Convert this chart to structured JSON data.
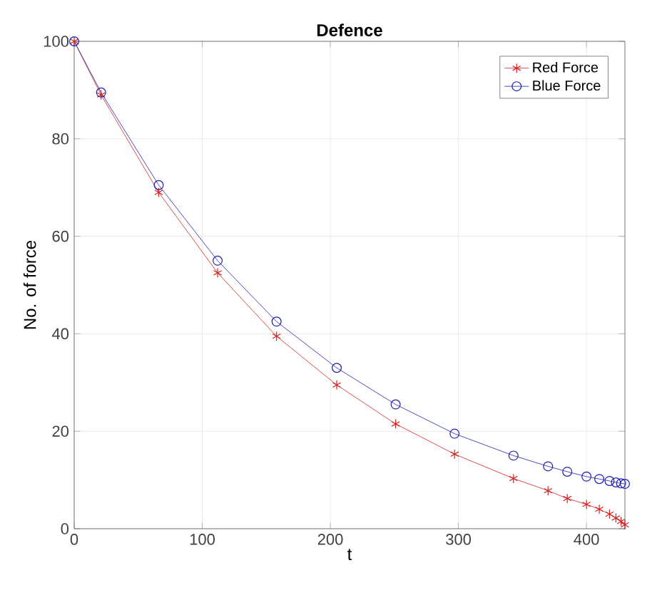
{
  "chart_data": {
    "type": "line",
    "title": "Defence",
    "xlabel": "t",
    "ylabel": "No. of force",
    "xlim": [
      0,
      430
    ],
    "ylim": [
      0,
      100
    ],
    "xticks": [
      0,
      100,
      200,
      300,
      400
    ],
    "yticks": [
      0,
      20,
      40,
      60,
      80,
      100
    ],
    "grid": true,
    "legend": "top right",
    "series": [
      {
        "name": "Red Force",
        "color": "#d62020",
        "marker": "cross",
        "x": [
          0,
          21,
          66,
          112,
          158,
          205,
          251,
          297,
          343,
          370,
          385,
          400,
          410,
          418,
          423,
          427,
          430
        ],
        "values": [
          100,
          89,
          69,
          52.5,
          39.5,
          29.5,
          21.5,
          15.3,
          10.3,
          7.8,
          6.2,
          5,
          4,
          3,
          2.2,
          1.5,
          0.8
        ]
      },
      {
        "name": "Blue Force",
        "color": "#2020b0",
        "marker": "circle",
        "x": [
          0,
          21,
          66,
          112,
          158,
          205,
          251,
          297,
          343,
          370,
          385,
          400,
          410,
          418,
          423,
          427,
          430
        ],
        "values": [
          100,
          89.5,
          70.5,
          55,
          42.5,
          33,
          25.5,
          19.5,
          15,
          12.8,
          11.7,
          10.7,
          10.2,
          9.8,
          9.5,
          9.3,
          9.2
        ]
      }
    ]
  }
}
